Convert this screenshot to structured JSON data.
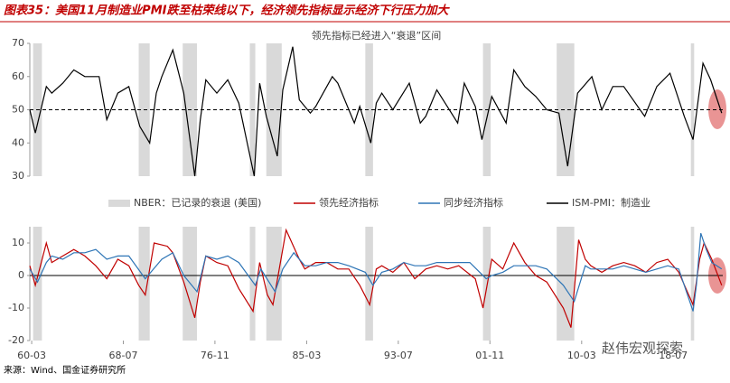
{
  "title": "图表35：美国11月制造业PMI跌至枯荣线以下，经济领先指标显示经济下行压力加大",
  "source": "来源：Wind、国金证券研究所",
  "watermark": "赵伟宏观探索",
  "xlim": [
    1960,
    2023
  ],
  "xticks": [
    {
      "value": 1960.17,
      "label": "60-03"
    },
    {
      "value": 1968.5,
      "label": "68-07"
    },
    {
      "value": 1976.83,
      "label": "76-11"
    },
    {
      "value": 1985.17,
      "label": "85-03"
    },
    {
      "value": 1993.5,
      "label": "93-07"
    },
    {
      "value": 2001.83,
      "label": "01-11"
    },
    {
      "value": 2010.17,
      "label": "10-03"
    },
    {
      "value": 2018.5,
      "label": "18-07"
    }
  ],
  "recession_label": "NBER：已记录的衰退 (美国)",
  "recession_color": "#d9d9d9",
  "recessions": [
    [
      1960.3,
      1961.1
    ],
    [
      1969.9,
      1970.9
    ],
    [
      1973.9,
      1975.2
    ],
    [
      1980.0,
      1980.5
    ],
    [
      1981.5,
      1982.9
    ],
    [
      1990.5,
      1991.2
    ],
    [
      2001.2,
      2001.9
    ],
    [
      2007.9,
      2009.5
    ],
    [
      2020.1,
      2020.4
    ]
  ],
  "chart_data": [
    {
      "type": "line",
      "annotation": "领先指标已经进入“衰退”区间",
      "ylim": [
        30,
        70
      ],
      "yticks": [
        30,
        40,
        50,
        60,
        70
      ],
      "reference_line": 50,
      "series": [
        {
          "name": "ISM-PMI：制造业",
          "color": "#000000",
          "x": [
            1960.0,
            1960.5,
            1961.5,
            1962,
            1963,
            1964,
            1965,
            1966.3,
            1967,
            1968,
            1969,
            1970,
            1970.9,
            1971.5,
            1972,
            1973,
            1974,
            1975.0,
            1975.5,
            1976,
            1977,
            1978,
            1979,
            1980.4,
            1980.9,
            1981.5,
            1982.5,
            1983,
            1983.9,
            1984.5,
            1985.5,
            1986,
            1987.5,
            1988,
            1989.5,
            1990,
            1991.0,
            1991.5,
            1992,
            1993,
            1994.5,
            1995.5,
            1996,
            1997,
            1998.9,
            1999.5,
            2000.5,
            2001.1,
            2002,
            2003.3,
            2004,
            2005,
            2006,
            2007,
            2008.1,
            2008.9,
            2009.8,
            2011.1,
            2012,
            2013,
            2014,
            2015.9,
            2017,
            2018.2,
            2019.5,
            2020.3,
            2021.2,
            2021.9,
            2022.5,
            2022.9
          ],
          "values": [
            50,
            43,
            57,
            55,
            58,
            62,
            60,
            60,
            47,
            55,
            57,
            45,
            40,
            55,
            60,
            68,
            55,
            30,
            47,
            59,
            55,
            59,
            52,
            30,
            58,
            48,
            36,
            56,
            69,
            53,
            49,
            51,
            60,
            58,
            46,
            51,
            40,
            52,
            55,
            50,
            58,
            46,
            48,
            56,
            46,
            58,
            51,
            41,
            54,
            46,
            62,
            57,
            54,
            50,
            49,
            33,
            55,
            60,
            50,
            57,
            57,
            48,
            57,
            61,
            48,
            41,
            64,
            59,
            53,
            49
          ]
        }
      ]
    },
    {
      "type": "line",
      "ylim": [
        -20,
        15
      ],
      "yticks": [
        -20,
        -10,
        0,
        10
      ],
      "reference_line": 0,
      "series": [
        {
          "name": "领先经济指标",
          "color": "#c00000",
          "x": [
            1960,
            1960.5,
            1961.5,
            1962,
            1963,
            1964,
            1965,
            1966,
            1967,
            1968,
            1969,
            1969.9,
            1970.5,
            1971.3,
            1972.5,
            1973,
            1974,
            1975.0,
            1975.5,
            1976,
            1977,
            1978,
            1979,
            1980.3,
            1980.9,
            1981.6,
            1982.1,
            1983.3,
            1984.5,
            1985,
            1986,
            1987,
            1988,
            1989,
            1990,
            1990.9,
            1991.5,
            1992,
            1993,
            1994,
            1995,
            1996,
            1997,
            1998,
            1999,
            2000.5,
            2001.2,
            2002,
            2003,
            2004,
            2005,
            2006,
            2007,
            2008.5,
            2009.2,
            2009.9,
            2010.5,
            2011,
            2012,
            2013,
            2014,
            2015,
            2016,
            2017,
            2018,
            2019,
            2020.3,
            2020.9,
            2021.3,
            2022,
            2022.9
          ],
          "values": [
            3,
            -3,
            10,
            4,
            6,
            8,
            6,
            3,
            -1,
            5,
            3,
            -3,
            -6,
            10,
            9,
            7,
            -2,
            -13,
            -2,
            6,
            4,
            3,
            -4,
            -11,
            4,
            -6,
            -9,
            14,
            5,
            2,
            4,
            4,
            2,
            2,
            -3,
            -9,
            2,
            3,
            1,
            4,
            -1,
            2,
            3,
            2,
            3,
            -1,
            -10,
            5,
            2,
            10,
            4,
            0,
            -2,
            -10,
            -16,
            11,
            5,
            3,
            1,
            3,
            4,
            3,
            1,
            4,
            5,
            1,
            -9,
            5,
            10,
            5,
            -3
          ]
        },
        {
          "name": "同步经济指标",
          "color": "#2e75b6",
          "x": [
            1960,
            1960.7,
            1961.5,
            1962,
            1963,
            1964,
            1965,
            1966,
            1967,
            1968,
            1969,
            1970.5,
            1971,
            1972,
            1973,
            1974,
            1975.2,
            1976,
            1977,
            1978,
            1979,
            1980.5,
            1981,
            1982.3,
            1983,
            1984,
            1985,
            1986,
            1987,
            1988,
            1989,
            1990.5,
            1991.2,
            1992,
            1993,
            1994,
            1995,
            1996,
            1997,
            1998,
            1999,
            2000,
            2001.5,
            2002,
            2003,
            2004,
            2005,
            2006,
            2007,
            2008.5,
            2009.5,
            2010.5,
            2011,
            2012,
            2013,
            2014,
            2015,
            2016,
            2017,
            2018,
            2019,
            2020.3,
            2020.6,
            2021,
            2021.5,
            2022,
            2022.9
          ],
          "values": [
            2,
            -2,
            4,
            6,
            5,
            7,
            7,
            8,
            5,
            6,
            6,
            -1,
            1,
            5,
            7,
            0,
            -5,
            6,
            5,
            6,
            4,
            -3,
            2,
            -5,
            2,
            7,
            3,
            3,
            4,
            4,
            3,
            1,
            -3,
            1,
            2,
            4,
            3,
            3,
            4,
            4,
            4,
            4,
            -1,
            0,
            1,
            3,
            3,
            3,
            2,
            -3,
            -8,
            3,
            2,
            2,
            2,
            3,
            2,
            1,
            2,
            3,
            2,
            -11,
            -3,
            13,
            8,
            4,
            2
          ]
        }
      ]
    }
  ]
}
